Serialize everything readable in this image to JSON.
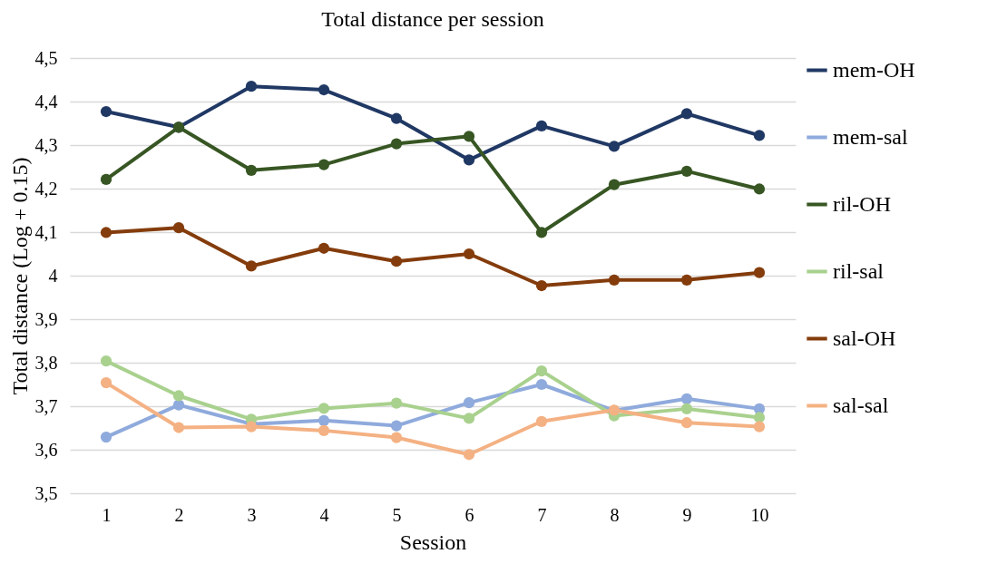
{
  "chart_data": {
    "type": "line",
    "title": "Total distance per session",
    "xlabel": "Session",
    "ylabel": "Total distance (Log + 0.15)",
    "categories": [
      "1",
      "2",
      "3",
      "4",
      "5",
      "6",
      "7",
      "8",
      "9",
      "10"
    ],
    "series": [
      {
        "name": "mem-OH",
        "color": "#203864",
        "values": [
          4.377,
          4.341,
          4.435,
          4.427,
          4.361,
          4.266,
          4.344,
          4.297,
          4.372,
          4.322
        ]
      },
      {
        "name": "mem-sal",
        "color": "#8faadc",
        "values": [
          3.629,
          3.703,
          3.659,
          3.667,
          3.655,
          3.708,
          3.75,
          3.69,
          3.717,
          3.694
        ]
      },
      {
        "name": "ril-OH",
        "color": "#375623",
        "values": [
          4.221,
          4.341,
          4.242,
          4.255,
          4.303,
          4.32,
          4.099,
          4.209,
          4.24,
          4.199
        ]
      },
      {
        "name": "ril-sal",
        "color": "#a9d18e",
        "values": [
          3.804,
          3.724,
          3.67,
          3.695,
          3.707,
          3.672,
          3.781,
          3.678,
          3.694,
          3.674
        ]
      },
      {
        "name": "sal-OH",
        "color": "#843c0c",
        "values": [
          4.099,
          4.11,
          4.022,
          4.063,
          4.033,
          4.05,
          3.977,
          3.99,
          3.99,
          4.007
        ]
      },
      {
        "name": "sal-sal",
        "color": "#f4b183",
        "values": [
          3.754,
          3.651,
          3.653,
          3.644,
          3.628,
          3.589,
          3.665,
          3.691,
          3.662,
          3.653
        ]
      }
    ],
    "ylim": [
      3.5,
      4.5
    ],
    "yticks": [
      {
        "value": 3.5,
        "label": "3,5"
      },
      {
        "value": 3.6,
        "label": "3,6"
      },
      {
        "value": 3.7,
        "label": "3,7"
      },
      {
        "value": 3.8,
        "label": "3,8"
      },
      {
        "value": 3.9,
        "label": "3,9"
      },
      {
        "value": 4,
        "label": "4"
      },
      {
        "value": 4.1,
        "label": "4,1"
      },
      {
        "value": 4.2,
        "label": "4,2"
      },
      {
        "value": 4.3,
        "label": "4,3"
      },
      {
        "value": 4.4,
        "label": "4,4"
      },
      {
        "value": 4.5,
        "label": "4,5"
      }
    ],
    "grid": "y",
    "legend": "right",
    "marker": "circle",
    "line_style": "solid"
  }
}
